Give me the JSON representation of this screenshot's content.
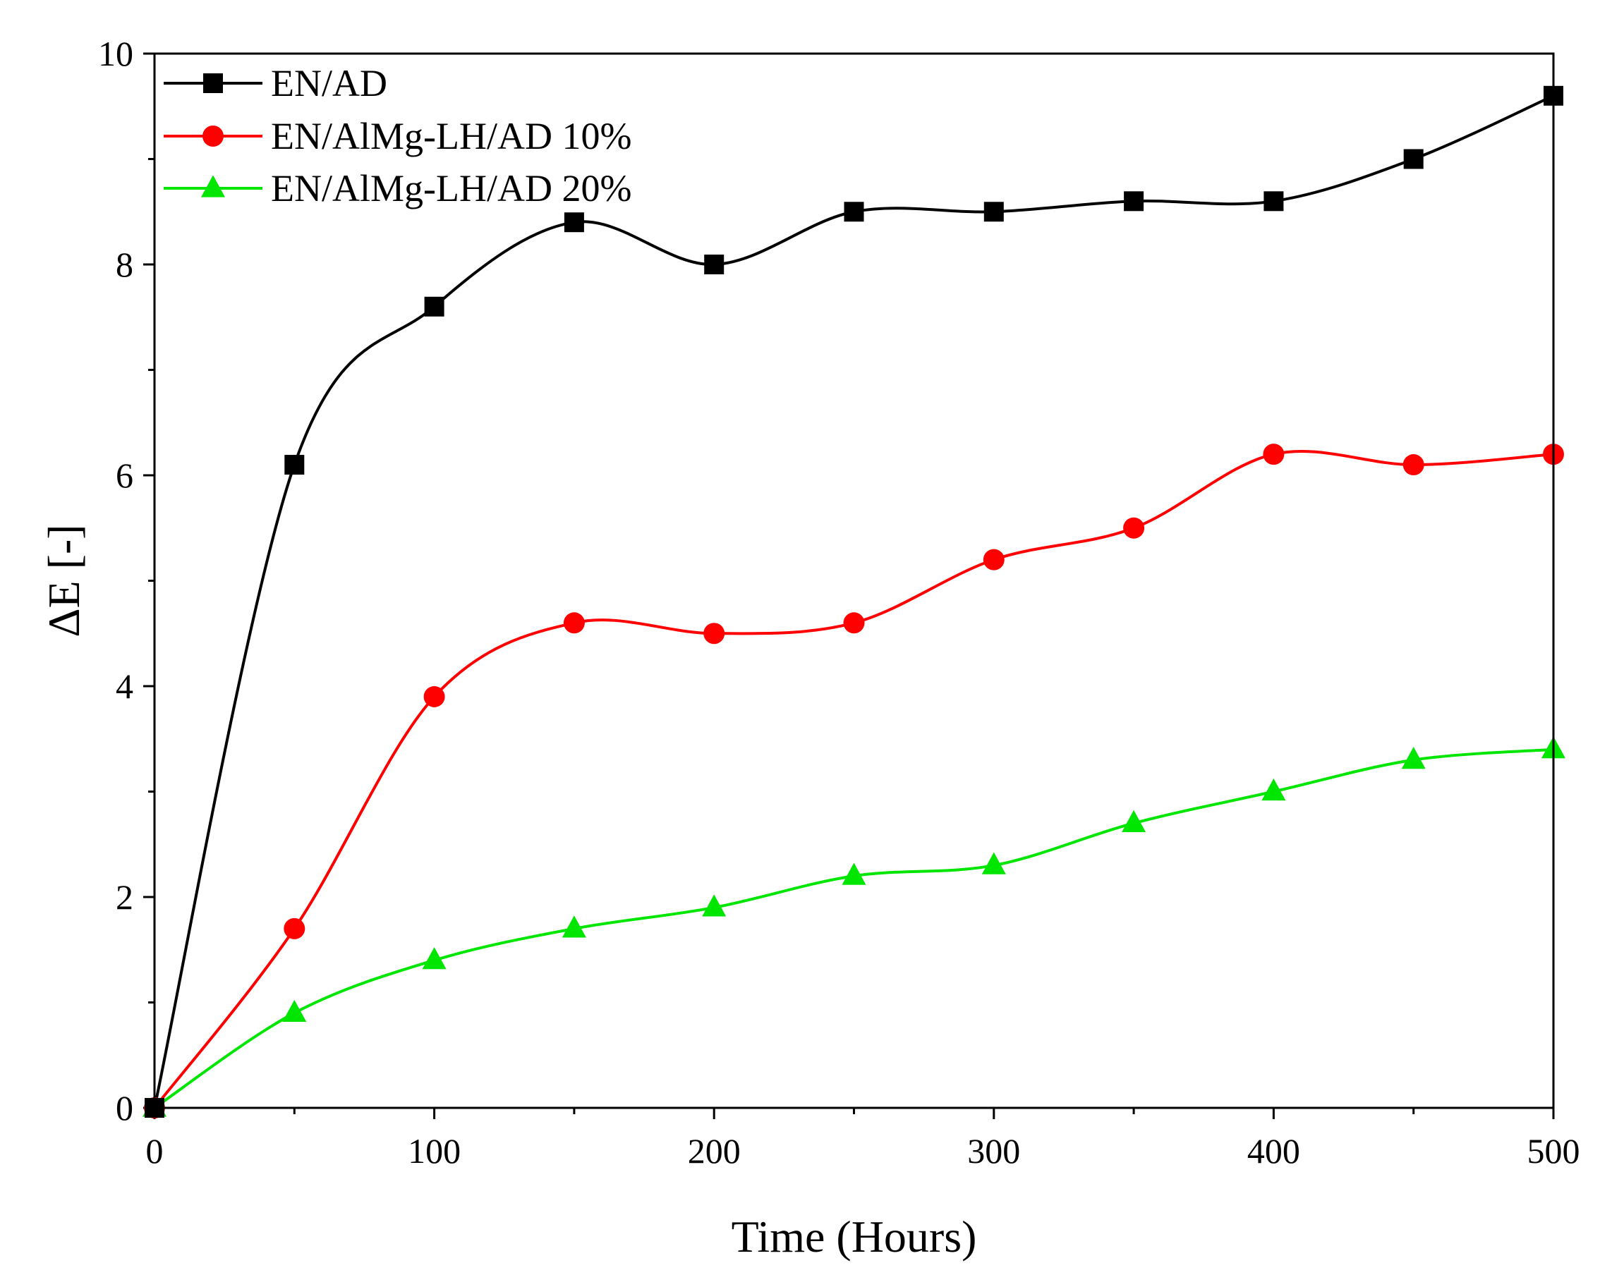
{
  "chart_data": {
    "type": "line",
    "title": "",
    "xlabel": "Time (Hours)",
    "ylabel": "ΔE [-]",
    "xlim": [
      0,
      500
    ],
    "ylim": [
      0,
      10
    ],
    "xticks": [
      0,
      100,
      200,
      300,
      400,
      500
    ],
    "xtick_labels": [
      "0",
      "100",
      "200",
      "300",
      "400",
      "500"
    ],
    "yticks": [
      0,
      2,
      4,
      6,
      8,
      10
    ],
    "ytick_labels": [
      "0",
      "2",
      "4",
      "6",
      "8",
      "10"
    ],
    "grid": false,
    "legend_position": "top-left",
    "x": [
      0,
      50,
      100,
      150,
      200,
      250,
      300,
      350,
      400,
      450,
      500
    ],
    "series": [
      {
        "name": "EN/AD",
        "color": "#000000",
        "marker": "square",
        "values": [
          0,
          6.1,
          7.6,
          8.4,
          8.0,
          8.5,
          8.5,
          8.6,
          8.6,
          9.0,
          9.6
        ]
      },
      {
        "name": "EN/AlMg-LH/AD 10%",
        "color": "#ff0000",
        "marker": "circle",
        "values": [
          0,
          1.7,
          3.9,
          4.6,
          4.5,
          4.6,
          5.2,
          5.5,
          6.2,
          6.1,
          6.2
        ]
      },
      {
        "name": "EN/AlMg-LH/AD 20%",
        "color": "#00e600",
        "marker": "triangle",
        "values": [
          0,
          0.9,
          1.4,
          1.7,
          1.9,
          2.2,
          2.3,
          2.7,
          3.0,
          3.3,
          3.4
        ]
      }
    ]
  }
}
